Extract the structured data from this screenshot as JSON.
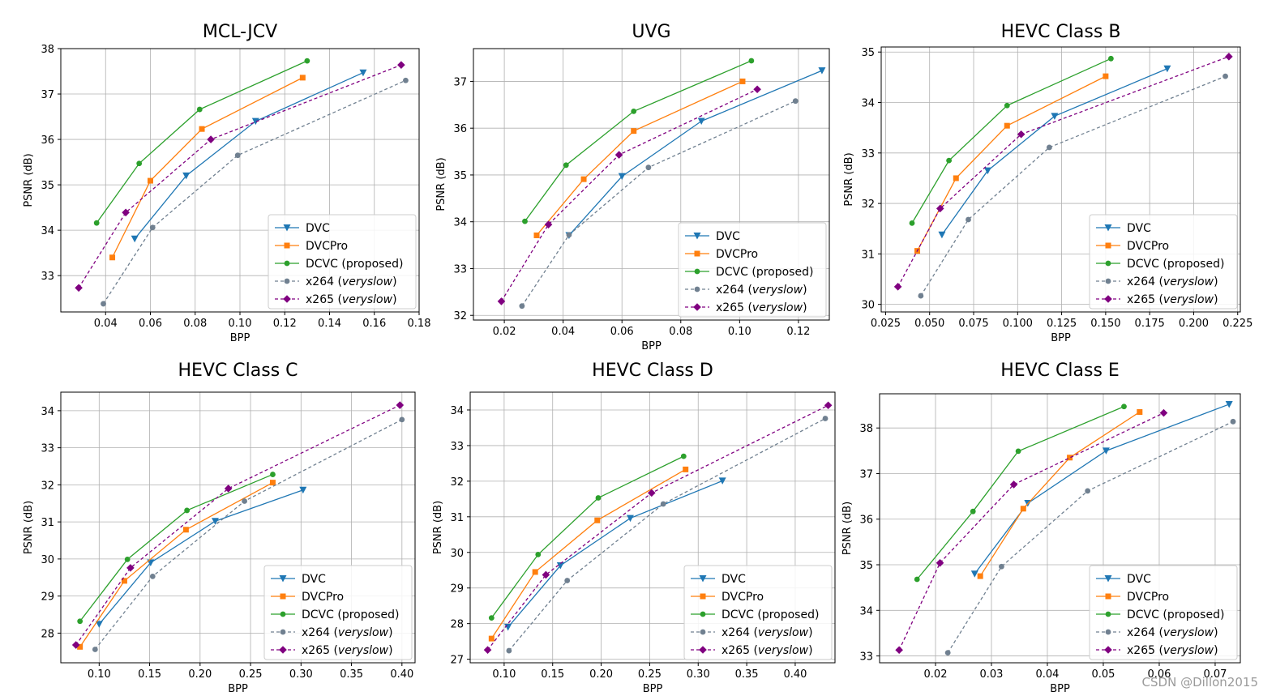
{
  "watermark": "CSDN @Dillon2015",
  "colors": {
    "DVC": "#1f77b4",
    "DVCPro": "#ff7f0e",
    "DCVC": "#2ca02c",
    "x264": "#708090",
    "x265": "#800080"
  },
  "legend_labels": [
    {
      "key": "DVC",
      "text": "DVC",
      "italic": ""
    },
    {
      "key": "DVCPro",
      "text": "DVCPro",
      "italic": ""
    },
    {
      "key": "DCVC",
      "text": "DCVC (proposed)",
      "italic": ""
    },
    {
      "key": "x264",
      "text": "x264 (",
      "italic": "veryslow",
      "close": ")"
    },
    {
      "key": "x265",
      "text": "x265 (",
      "italic": "veryslow",
      "close": ")"
    }
  ],
  "chart_data": [
    {
      "type": "line",
      "title": "MCL-JCV",
      "xlabel": "BPP",
      "ylabel": "PSNR (dB)",
      "xlim": [
        0.02,
        0.18
      ],
      "ylim": [
        32.2,
        38.0
      ],
      "xticks": [
        0.04,
        0.06,
        0.08,
        0.1,
        0.12,
        0.14,
        0.16,
        0.18
      ],
      "xtick_labels": [
        "0.04",
        "0.06",
        "0.08",
        "0.10",
        "0.12",
        "0.14",
        "0.16",
        "0.18"
      ],
      "yticks": [
        33,
        34,
        35,
        36,
        37,
        38
      ],
      "ytick_labels": [
        "33",
        "34",
        "35",
        "36",
        "37",
        "38"
      ],
      "legend": "lower-right",
      "series": [
        {
          "name": "DVC",
          "x": [
            0.053,
            0.076,
            0.107,
            0.155
          ],
          "y": [
            33.81,
            35.2,
            36.4,
            37.47
          ]
        },
        {
          "name": "DVCPro",
          "x": [
            0.043,
            0.06,
            0.083,
            0.128
          ],
          "y": [
            33.4,
            35.09,
            36.23,
            37.36
          ]
        },
        {
          "name": "DCVC",
          "x": [
            0.036,
            0.055,
            0.082,
            0.13
          ],
          "y": [
            34.16,
            35.47,
            36.66,
            37.73
          ]
        },
        {
          "name": "x264",
          "x": [
            0.039,
            0.061,
            0.099,
            0.174
          ],
          "y": [
            32.38,
            34.06,
            35.65,
            37.3
          ]
        },
        {
          "name": "x265",
          "x": [
            0.028,
            0.049,
            0.087,
            0.172
          ],
          "y": [
            32.73,
            34.39,
            36.0,
            37.64
          ]
        }
      ]
    },
    {
      "type": "line",
      "title": "UVG",
      "xlabel": "BPP",
      "ylabel": "PSNR (dB)",
      "xlim": [
        0.0095,
        0.1305
      ],
      "ylim": [
        31.9,
        37.7
      ],
      "xticks": [
        0.02,
        0.04,
        0.06,
        0.08,
        0.1,
        0.12
      ],
      "xtick_labels": [
        "0.02",
        "0.04",
        "0.06",
        "0.08",
        "0.10",
        "0.12"
      ],
      "yticks": [
        32,
        33,
        34,
        35,
        36,
        37
      ],
      "ytick_labels": [
        "32",
        "33",
        "34",
        "35",
        "36",
        "37"
      ],
      "legend": "lower-right",
      "series": [
        {
          "name": "DVC",
          "x": [
            0.042,
            0.06,
            0.087,
            0.128
          ],
          "y": [
            33.71,
            34.97,
            36.15,
            37.23
          ]
        },
        {
          "name": "DVCPro",
          "x": [
            0.031,
            0.047,
            0.064,
            0.101
          ],
          "y": [
            33.71,
            34.91,
            35.94,
            37.0
          ]
        },
        {
          "name": "DCVC",
          "x": [
            0.027,
            0.041,
            0.064,
            0.104
          ],
          "y": [
            34.01,
            35.21,
            36.36,
            37.44
          ]
        },
        {
          "name": "x264",
          "x": [
            0.026,
            0.042,
            0.069,
            0.119
          ],
          "y": [
            32.2,
            33.72,
            35.16,
            36.58
          ]
        },
        {
          "name": "x265",
          "x": [
            0.019,
            0.035,
            0.059,
            0.106
          ],
          "y": [
            32.3,
            33.94,
            35.43,
            36.83
          ]
        }
      ]
    },
    {
      "type": "line",
      "title": "HEVC Class B",
      "xlabel": "BPP",
      "ylabel": "PSNR (dB)",
      "xlim": [
        0.0225,
        0.2265
      ],
      "ylim": [
        29.85,
        35.1
      ],
      "xticks": [
        0.025,
        0.05,
        0.075,
        0.1,
        0.125,
        0.15,
        0.175,
        0.2,
        0.225
      ],
      "xtick_labels": [
        "0.025",
        "0.050",
        "0.075",
        "0.100",
        "0.125",
        "0.150",
        "0.175",
        "0.200",
        "0.225"
      ],
      "yticks": [
        30,
        31,
        32,
        33,
        34,
        35
      ],
      "ytick_labels": [
        "30",
        "31",
        "32",
        "33",
        "34",
        "35"
      ],
      "legend": "lower-right",
      "series": [
        {
          "name": "DVC",
          "x": [
            0.057,
            0.083,
            0.121,
            0.185
          ],
          "y": [
            31.38,
            32.65,
            33.73,
            34.67
          ]
        },
        {
          "name": "DVCPro",
          "x": [
            0.043,
            0.065,
            0.094,
            0.15
          ],
          "y": [
            31.06,
            32.5,
            33.54,
            34.52
          ]
        },
        {
          "name": "DCVC",
          "x": [
            0.04,
            0.061,
            0.094,
            0.153
          ],
          "y": [
            31.61,
            32.85,
            33.94,
            34.87
          ]
        },
        {
          "name": "x264",
          "x": [
            0.045,
            0.072,
            0.118,
            0.218
          ],
          "y": [
            30.17,
            31.68,
            33.11,
            34.52
          ]
        },
        {
          "name": "x265",
          "x": [
            0.032,
            0.056,
            0.102,
            0.22
          ],
          "y": [
            30.35,
            31.9,
            33.37,
            34.91
          ]
        }
      ]
    },
    {
      "type": "line",
      "title": "HEVC Class C",
      "xlabel": "BPP",
      "ylabel": "PSNR (dB)",
      "xlim": [
        0.062,
        0.413
      ],
      "ylim": [
        27.2,
        34.5
      ],
      "xticks": [
        0.1,
        0.15,
        0.2,
        0.25,
        0.3,
        0.35,
        0.4
      ],
      "xtick_labels": [
        "0.10",
        "0.15",
        "0.20",
        "0.25",
        "0.30",
        "0.35",
        "0.40"
      ],
      "yticks": [
        28,
        29,
        30,
        31,
        32,
        33,
        34
      ],
      "ytick_labels": [
        "28",
        "29",
        "30",
        "31",
        "32",
        "33",
        "34"
      ],
      "legend": "lower-right",
      "series": [
        {
          "name": "DVC",
          "x": [
            0.1,
            0.151,
            0.215,
            0.302
          ],
          "y": [
            28.24,
            29.9,
            31.02,
            31.86
          ]
        },
        {
          "name": "DVCPro",
          "x": [
            0.081,
            0.125,
            0.186,
            0.272
          ],
          "y": [
            27.63,
            29.41,
            30.79,
            32.06
          ]
        },
        {
          "name": "DCVC",
          "x": [
            0.081,
            0.128,
            0.187,
            0.272
          ],
          "y": [
            28.32,
            29.99,
            31.31,
            32.28
          ]
        },
        {
          "name": "x264",
          "x": [
            0.096,
            0.153,
            0.244,
            0.4
          ],
          "y": [
            27.56,
            29.53,
            31.56,
            33.76
          ]
        },
        {
          "name": "x265",
          "x": [
            0.077,
            0.131,
            0.228,
            0.398
          ],
          "y": [
            27.68,
            29.76,
            31.9,
            34.15
          ]
        }
      ]
    },
    {
      "type": "line",
      "title": "HEVC Class D",
      "xlabel": "BPP",
      "ylabel": "PSNR (dB)",
      "xlim": [
        0.065,
        0.441
      ],
      "ylim": [
        26.9,
        34.5
      ],
      "xticks": [
        0.1,
        0.15,
        0.2,
        0.25,
        0.3,
        0.35,
        0.4
      ],
      "xtick_labels": [
        "0.10",
        "0.15",
        "0.20",
        "0.25",
        "0.30",
        "0.35",
        "0.40"
      ],
      "yticks": [
        27,
        28,
        29,
        30,
        31,
        32,
        33,
        34
      ],
      "ytick_labels": [
        "27",
        "28",
        "29",
        "30",
        "31",
        "32",
        "33",
        "34"
      ],
      "legend": "lower-right",
      "series": [
        {
          "name": "DVC",
          "x": [
            0.104,
            0.158,
            0.23,
            0.325
          ],
          "y": [
            27.9,
            29.63,
            30.96,
            32.01
          ]
        },
        {
          "name": "DVCPro",
          "x": [
            0.087,
            0.132,
            0.196,
            0.287
          ],
          "y": [
            27.58,
            29.45,
            30.9,
            32.33
          ]
        },
        {
          "name": "DCVC",
          "x": [
            0.087,
            0.135,
            0.197,
            0.285
          ],
          "y": [
            28.16,
            29.94,
            31.53,
            32.7
          ]
        },
        {
          "name": "x264",
          "x": [
            0.105,
            0.165,
            0.264,
            0.431
          ],
          "y": [
            27.24,
            29.21,
            31.36,
            33.76
          ]
        },
        {
          "name": "x265",
          "x": [
            0.083,
            0.143,
            0.252,
            0.434
          ],
          "y": [
            27.26,
            29.37,
            31.67,
            34.13
          ]
        }
      ]
    },
    {
      "type": "line",
      "title": "HEVC Class E",
      "xlabel": "BPP",
      "ylabel": "PSNR (dB)",
      "xlim": [
        0.01,
        0.0745
      ],
      "ylim": [
        32.85,
        38.75
      ],
      "xticks": [
        0.02,
        0.03,
        0.04,
        0.05,
        0.06,
        0.07
      ],
      "xtick_labels": [
        "0.02",
        "0.03",
        "0.04",
        "0.05",
        "0.06",
        "0.07"
      ],
      "yticks": [
        33,
        34,
        35,
        36,
        37,
        38
      ],
      "ytick_labels": [
        "33",
        "34",
        "35",
        "36",
        "37",
        "38"
      ],
      "legend": "lower-right",
      "series": [
        {
          "name": "DVC",
          "x": [
            0.027,
            0.0365,
            0.0505,
            0.0725
          ],
          "y": [
            34.8,
            36.35,
            37.5,
            38.52
          ]
        },
        {
          "name": "DVCPro",
          "x": [
            0.028,
            0.0357,
            0.044,
            0.0565
          ],
          "y": [
            34.75,
            36.23,
            37.35,
            38.35
          ]
        },
        {
          "name": "DCVC",
          "x": [
            0.0167,
            0.0267,
            0.0348,
            0.0537
          ],
          "y": [
            34.68,
            36.17,
            37.49,
            38.47
          ]
        },
        {
          "name": "x264",
          "x": [
            0.0222,
            0.0318,
            0.0472,
            0.0732
          ],
          "y": [
            33.07,
            34.96,
            36.62,
            38.14
          ]
        },
        {
          "name": "x265",
          "x": [
            0.0135,
            0.0208,
            0.034,
            0.0608
          ],
          "y": [
            33.13,
            35.04,
            36.76,
            38.33
          ]
        }
      ]
    }
  ]
}
